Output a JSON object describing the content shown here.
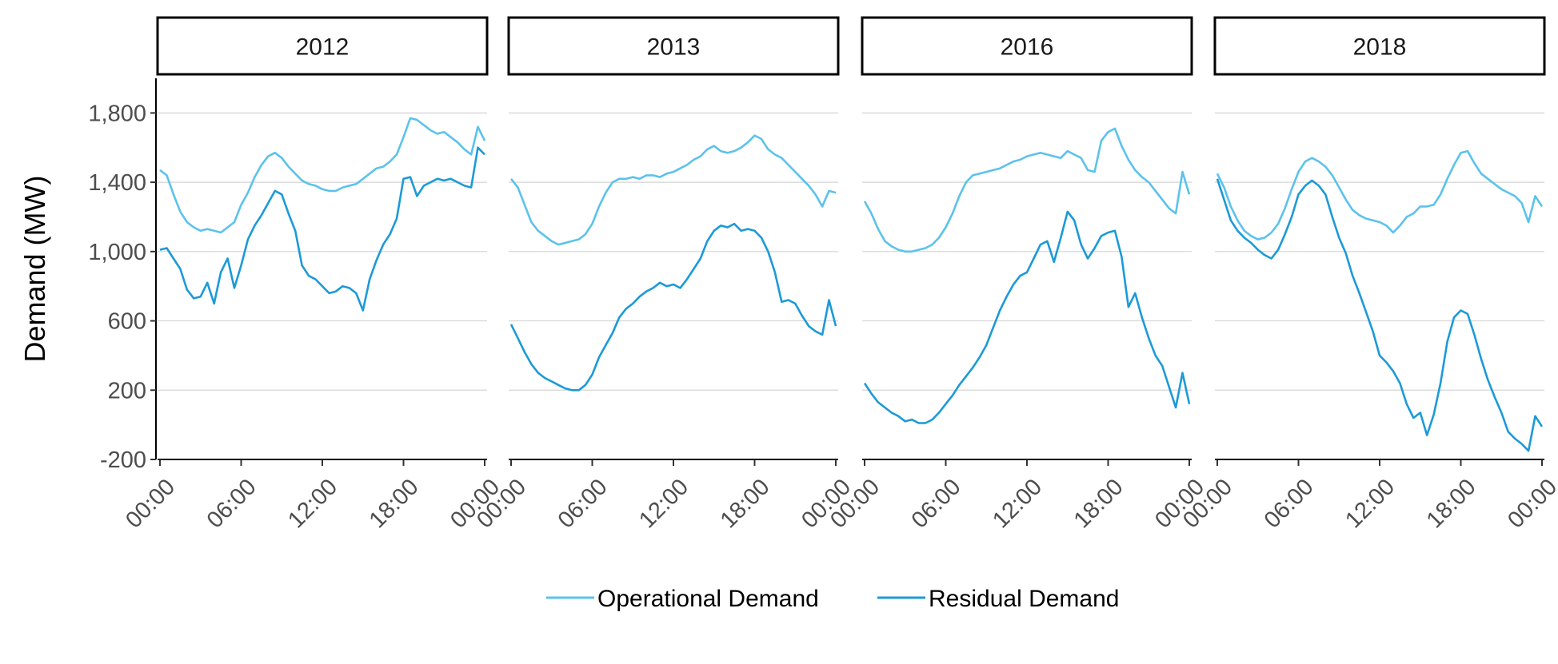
{
  "chart_data": {
    "type": "line",
    "ylabel": "Demand (MW)",
    "xlabel": "",
    "ylim": [
      -200,
      2000
    ],
    "y_ticks": [
      -200,
      200,
      600,
      "1,000",
      "1,400",
      "1,800"
    ],
    "y_tick_values": [
      -200,
      200,
      600,
      1000,
      1400,
      1800
    ],
    "x_ticks": [
      "00:00",
      "06:00",
      "12:00",
      "18:00",
      "00:00"
    ],
    "x_tick_hours": [
      0,
      6,
      12,
      18,
      24
    ],
    "x_unit": "hour of day",
    "grid": "horizontal major lines",
    "legend_position": "bottom",
    "colors": {
      "Operational Demand": "#5bc2ec",
      "Residual Demand": "#1b9ad8"
    },
    "legend": [
      "Operational Demand",
      "Residual Demand"
    ],
    "panels": [
      {
        "label": "2012",
        "x": [
          0,
          0.5,
          1,
          1.5,
          2,
          2.5,
          3,
          3.5,
          4,
          4.5,
          5,
          5.5,
          6,
          6.5,
          7,
          7.5,
          8,
          8.5,
          9,
          9.5,
          10,
          10.5,
          11,
          11.5,
          12,
          12.5,
          13,
          13.5,
          14,
          14.5,
          15,
          15.5,
          16,
          16.5,
          17,
          17.5,
          18,
          18.5,
          19,
          19.5,
          20,
          20.5,
          21,
          21.5,
          22,
          22.5,
          23,
          23.5,
          24
        ],
        "series": [
          {
            "name": "Operational Demand",
            "values": [
              1470,
              1440,
              1330,
              1230,
              1170,
              1140,
              1120,
              1130,
              1120,
              1110,
              1140,
              1170,
              1270,
              1340,
              1430,
              1500,
              1550,
              1570,
              1540,
              1490,
              1450,
              1410,
              1390,
              1380,
              1360,
              1350,
              1350,
              1370,
              1380,
              1390,
              1420,
              1450,
              1480,
              1490,
              1520,
              1560,
              1660,
              1770,
              1760,
              1730,
              1700,
              1680,
              1690,
              1660,
              1630,
              1590,
              1560,
              1720,
              1640
            ]
          },
          {
            "name": "Residual Demand",
            "values": [
              1010,
              1020,
              960,
              900,
              780,
              730,
              740,
              820,
              700,
              880,
              960,
              790,
              920,
              1070,
              1150,
              1210,
              1280,
              1350,
              1330,
              1220,
              1120,
              920,
              860,
              840,
              800,
              760,
              770,
              800,
              790,
              760,
              660,
              840,
              950,
              1040,
              1100,
              1190,
              1420,
              1430,
              1320,
              1380,
              1400,
              1420,
              1410,
              1420,
              1400,
              1380,
              1370,
              1600,
              1560
            ]
          }
        ]
      },
      {
        "label": "2013",
        "x": [
          0,
          0.5,
          1,
          1.5,
          2,
          2.5,
          3,
          3.5,
          4,
          4.5,
          5,
          5.5,
          6,
          6.5,
          7,
          7.5,
          8,
          8.5,
          9,
          9.5,
          10,
          10.5,
          11,
          11.5,
          12,
          12.5,
          13,
          13.5,
          14,
          14.5,
          15,
          15.5,
          16,
          16.5,
          17,
          17.5,
          18,
          18.5,
          19,
          19.5,
          20,
          20.5,
          21,
          21.5,
          22,
          22.5,
          23,
          23.5,
          24
        ],
        "series": [
          {
            "name": "Operational Demand",
            "values": [
              1420,
              1370,
              1270,
              1170,
              1120,
              1090,
              1060,
              1040,
              1050,
              1060,
              1070,
              1100,
              1160,
              1260,
              1340,
              1400,
              1420,
              1420,
              1430,
              1420,
              1440,
              1440,
              1430,
              1450,
              1460,
              1480,
              1500,
              1530,
              1550,
              1590,
              1610,
              1580,
              1570,
              1580,
              1600,
              1630,
              1670,
              1650,
              1590,
              1560,
              1540,
              1500,
              1460,
              1420,
              1380,
              1330,
              1260,
              1350,
              1340
            ]
          },
          {
            "name": "Residual Demand",
            "values": [
              580,
              500,
              420,
              350,
              300,
              270,
              250,
              230,
              210,
              200,
              200,
              230,
              290,
              390,
              460,
              530,
              620,
              670,
              700,
              740,
              770,
              790,
              820,
              800,
              810,
              790,
              840,
              900,
              960,
              1060,
              1120,
              1150,
              1140,
              1160,
              1120,
              1130,
              1120,
              1080,
              1000,
              880,
              710,
              720,
              700,
              630,
              570,
              540,
              520,
              720,
              570
            ]
          }
        ]
      },
      {
        "label": "2016",
        "x": [
          0,
          0.5,
          1,
          1.5,
          2,
          2.5,
          3,
          3.5,
          4,
          4.5,
          5,
          5.5,
          6,
          6.5,
          7,
          7.5,
          8,
          8.5,
          9,
          9.5,
          10,
          10.5,
          11,
          11.5,
          12,
          12.5,
          13,
          13.5,
          14,
          14.5,
          15,
          15.5,
          16,
          16.5,
          17,
          17.5,
          18,
          18.5,
          19,
          19.5,
          20,
          20.5,
          21,
          21.5,
          22,
          22.5,
          23,
          23.5,
          24
        ],
        "series": [
          {
            "name": "Operational Demand",
            "values": [
              1290,
              1220,
              1130,
              1060,
              1030,
              1010,
              1000,
              1000,
              1010,
              1020,
              1040,
              1080,
              1140,
              1220,
              1320,
              1400,
              1440,
              1450,
              1460,
              1470,
              1480,
              1500,
              1520,
              1530,
              1550,
              1560,
              1570,
              1560,
              1550,
              1540,
              1580,
              1560,
              1540,
              1470,
              1460,
              1640,
              1690,
              1710,
              1610,
              1530,
              1470,
              1430,
              1400,
              1350,
              1300,
              1250,
              1220,
              1460,
              1330
            ]
          },
          {
            "name": "Residual Demand",
            "values": [
              240,
              180,
              130,
              100,
              70,
              50,
              20,
              30,
              10,
              10,
              30,
              70,
              120,
              170,
              230,
              280,
              330,
              390,
              460,
              560,
              660,
              740,
              810,
              860,
              880,
              960,
              1040,
              1060,
              940,
              1080,
              1230,
              1180,
              1040,
              960,
              1020,
              1090,
              1110,
              1120,
              970,
              680,
              760,
              620,
              500,
              400,
              340,
              220,
              100,
              300,
              120
            ]
          }
        ]
      },
      {
        "label": "2018",
        "x": [
          0,
          0.5,
          1,
          1.5,
          2,
          2.5,
          3,
          3.5,
          4,
          4.5,
          5,
          5.5,
          6,
          6.5,
          7,
          7.5,
          8,
          8.5,
          9,
          9.5,
          10,
          10.5,
          11,
          11.5,
          12,
          12.5,
          13,
          13.5,
          14,
          14.5,
          15,
          15.5,
          16,
          16.5,
          17,
          17.5,
          18,
          18.5,
          19,
          19.5,
          20,
          20.5,
          21,
          21.5,
          22,
          22.5,
          23,
          23.5,
          24
        ],
        "series": [
          {
            "name": "Operational Demand",
            "values": [
              1450,
              1370,
              1260,
              1180,
              1120,
              1090,
              1070,
              1080,
              1110,
              1160,
              1250,
              1360,
              1460,
              1520,
              1540,
              1520,
              1490,
              1440,
              1370,
              1300,
              1240,
              1210,
              1190,
              1180,
              1170,
              1150,
              1110,
              1150,
              1200,
              1220,
              1260,
              1260,
              1270,
              1330,
              1420,
              1500,
              1570,
              1580,
              1510,
              1450,
              1420,
              1390,
              1360,
              1340,
              1320,
              1280,
              1170,
              1320,
              1260
            ]
          },
          {
            "name": "Residual Demand",
            "values": [
              1420,
              1300,
              1180,
              1120,
              1080,
              1050,
              1010,
              980,
              960,
              1010,
              1100,
              1200,
              1330,
              1380,
              1410,
              1380,
              1330,
              1200,
              1080,
              990,
              860,
              760,
              650,
              540,
              400,
              360,
              310,
              240,
              120,
              40,
              70,
              -60,
              60,
              240,
              480,
              620,
              660,
              640,
              520,
              380,
              260,
              160,
              70,
              -40,
              -80,
              -110,
              -150,
              50,
              -10
            ]
          }
        ]
      }
    ]
  }
}
